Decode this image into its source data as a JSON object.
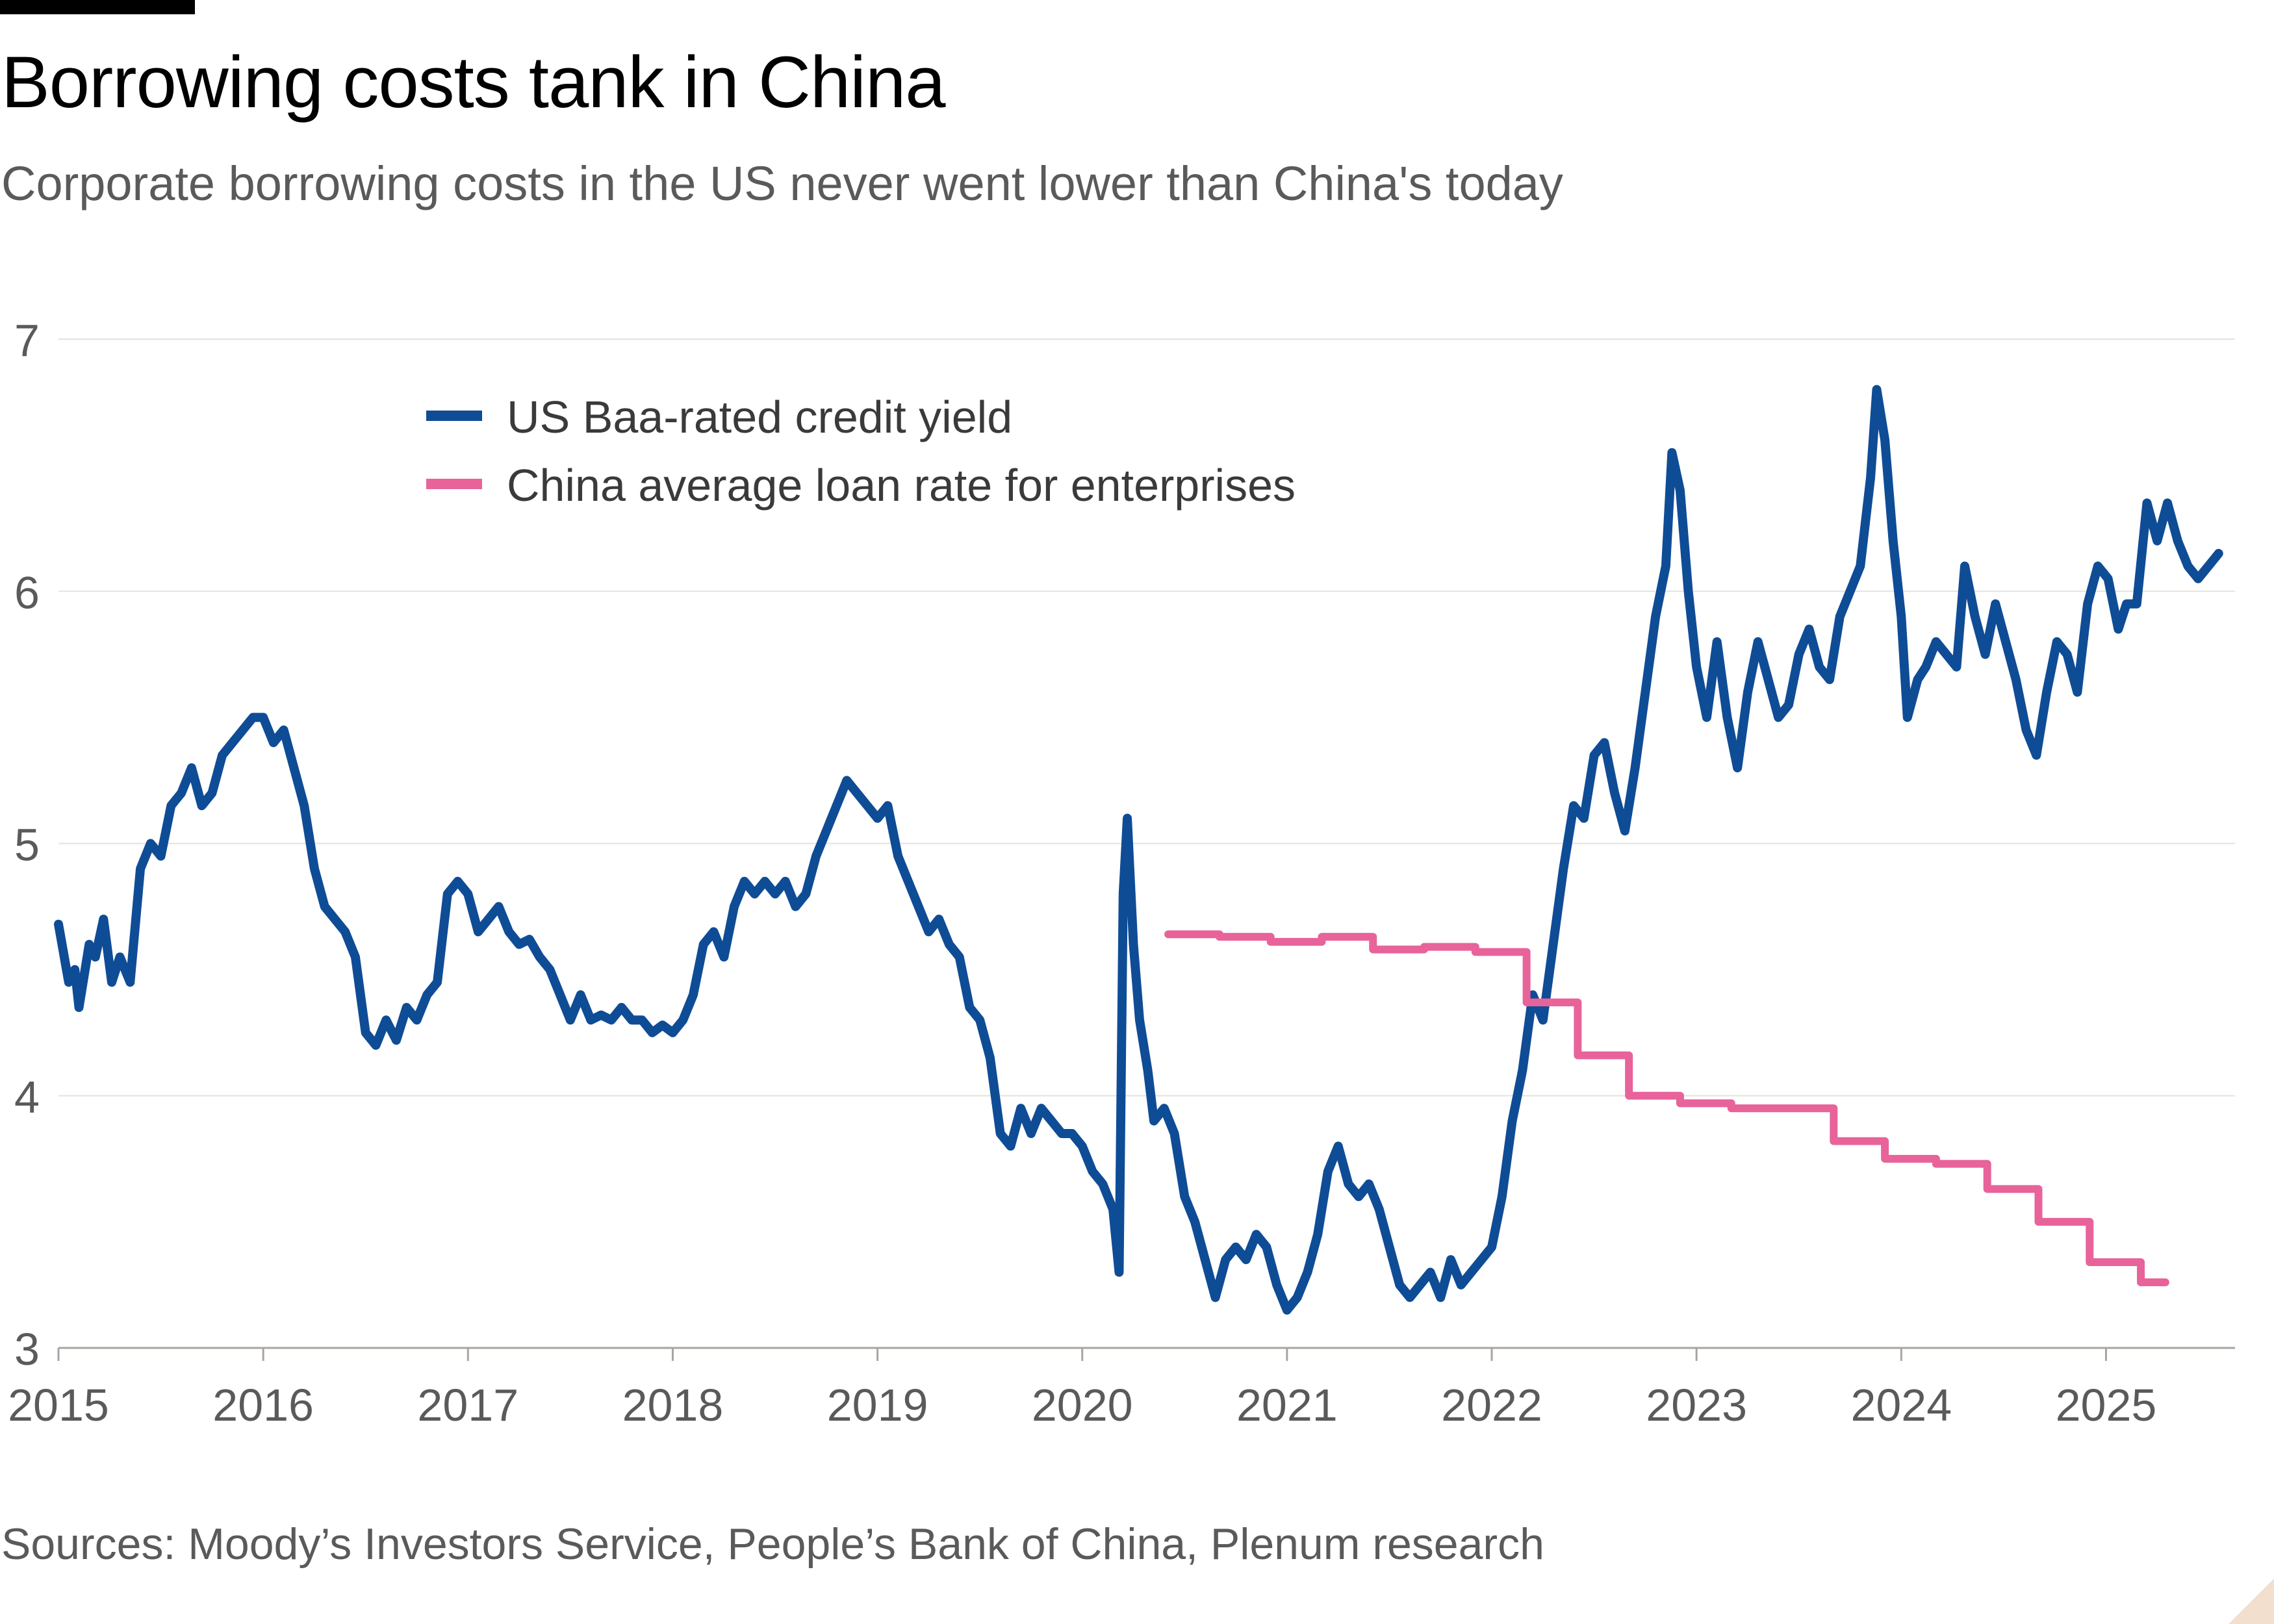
{
  "header": {
    "title": "Borrowing costs tank in China",
    "subtitle": "Corporate borrowing costs in the US never went lower than China's today"
  },
  "footer": {
    "source": "Sources: Moody’s Investors Service, People’s Bank of China, Plenum research"
  },
  "colors": {
    "us": "#0f4c96",
    "china": "#e8639a",
    "grid": "#e6e1dc",
    "axis_text": "#5a5a5a"
  },
  "chart_data": {
    "type": "line",
    "title": "Borrowing costs tank in China",
    "subtitle": "Corporate borrowing costs in the US never went lower than China's today",
    "xlabel": "",
    "ylabel": "",
    "xlim": [
      2015.0,
      2025.63
    ],
    "ylim": [
      3,
      7
    ],
    "yticks": [
      3,
      4,
      5,
      6,
      7
    ],
    "xticks": [
      2015,
      2016,
      2017,
      2018,
      2019,
      2020,
      2021,
      2022,
      2023,
      2024,
      2025
    ],
    "grid": true,
    "legend": "top-left",
    "series": [
      {
        "name": "US Baa-rated credit yield",
        "color": "#0f4c96",
        "step": false,
        "points": [
          [
            2015.0,
            4.68
          ],
          [
            2015.05,
            4.45
          ],
          [
            2015.08,
            4.5
          ],
          [
            2015.1,
            4.35
          ],
          [
            2015.15,
            4.6
          ],
          [
            2015.18,
            4.55
          ],
          [
            2015.22,
            4.7
          ],
          [
            2015.26,
            4.45
          ],
          [
            2015.3,
            4.55
          ],
          [
            2015.35,
            4.45
          ],
          [
            2015.4,
            4.9
          ],
          [
            2015.45,
            5.0
          ],
          [
            2015.5,
            4.95
          ],
          [
            2015.55,
            5.15
          ],
          [
            2015.6,
            5.2
          ],
          [
            2015.65,
            5.3
          ],
          [
            2015.7,
            5.15
          ],
          [
            2015.75,
            5.2
          ],
          [
            2015.8,
            5.35
          ],
          [
            2015.85,
            5.4
          ],
          [
            2015.9,
            5.45
          ],
          [
            2015.95,
            5.5
          ],
          [
            2016.0,
            5.5
          ],
          [
            2016.05,
            5.4
          ],
          [
            2016.1,
            5.45
          ],
          [
            2016.15,
            5.3
          ],
          [
            2016.2,
            5.15
          ],
          [
            2016.25,
            4.9
          ],
          [
            2016.3,
            4.75
          ],
          [
            2016.35,
            4.7
          ],
          [
            2016.4,
            4.65
          ],
          [
            2016.45,
            4.55
          ],
          [
            2016.5,
            4.25
          ],
          [
            2016.55,
            4.2
          ],
          [
            2016.6,
            4.3
          ],
          [
            2016.65,
            4.22
          ],
          [
            2016.7,
            4.35
          ],
          [
            2016.75,
            4.3
          ],
          [
            2016.8,
            4.4
          ],
          [
            2016.85,
            4.45
          ],
          [
            2016.9,
            4.8
          ],
          [
            2016.95,
            4.85
          ],
          [
            2017.0,
            4.8
          ],
          [
            2017.05,
            4.65
          ],
          [
            2017.1,
            4.7
          ],
          [
            2017.15,
            4.75
          ],
          [
            2017.2,
            4.65
          ],
          [
            2017.25,
            4.6
          ],
          [
            2017.3,
            4.62
          ],
          [
            2017.35,
            4.55
          ],
          [
            2017.4,
            4.5
          ],
          [
            2017.45,
            4.4
          ],
          [
            2017.5,
            4.3
          ],
          [
            2017.55,
            4.4
          ],
          [
            2017.6,
            4.3
          ],
          [
            2017.65,
            4.32
          ],
          [
            2017.7,
            4.3
          ],
          [
            2017.75,
            4.35
          ],
          [
            2017.8,
            4.3
          ],
          [
            2017.85,
            4.3
          ],
          [
            2017.9,
            4.25
          ],
          [
            2017.95,
            4.28
          ],
          [
            2018.0,
            4.25
          ],
          [
            2018.05,
            4.3
          ],
          [
            2018.1,
            4.4
          ],
          [
            2018.15,
            4.6
          ],
          [
            2018.2,
            4.65
          ],
          [
            2018.25,
            4.55
          ],
          [
            2018.3,
            4.75
          ],
          [
            2018.35,
            4.85
          ],
          [
            2018.4,
            4.8
          ],
          [
            2018.45,
            4.85
          ],
          [
            2018.5,
            4.8
          ],
          [
            2018.55,
            4.85
          ],
          [
            2018.6,
            4.75
          ],
          [
            2018.65,
            4.8
          ],
          [
            2018.7,
            4.95
          ],
          [
            2018.75,
            5.05
          ],
          [
            2018.8,
            5.15
          ],
          [
            2018.85,
            5.25
          ],
          [
            2018.9,
            5.2
          ],
          [
            2018.95,
            5.15
          ],
          [
            2019.0,
            5.1
          ],
          [
            2019.05,
            5.15
          ],
          [
            2019.1,
            4.95
          ],
          [
            2019.15,
            4.85
          ],
          [
            2019.2,
            4.75
          ],
          [
            2019.25,
            4.65
          ],
          [
            2019.3,
            4.7
          ],
          [
            2019.35,
            4.6
          ],
          [
            2019.4,
            4.55
          ],
          [
            2019.45,
            4.35
          ],
          [
            2019.5,
            4.3
          ],
          [
            2019.55,
            4.15
          ],
          [
            2019.6,
            3.85
          ],
          [
            2019.65,
            3.8
          ],
          [
            2019.7,
            3.95
          ],
          [
            2019.75,
            3.85
          ],
          [
            2019.8,
            3.95
          ],
          [
            2019.85,
            3.9
          ],
          [
            2019.9,
            3.85
          ],
          [
            2019.95,
            3.85
          ],
          [
            2020.0,
            3.8
          ],
          [
            2020.05,
            3.7
          ],
          [
            2020.1,
            3.65
          ],
          [
            2020.15,
            3.55
          ],
          [
            2020.18,
            3.3
          ],
          [
            2020.2,
            4.8
          ],
          [
            2020.22,
            5.1
          ],
          [
            2020.25,
            4.6
          ],
          [
            2020.28,
            4.3
          ],
          [
            2020.32,
            4.1
          ],
          [
            2020.35,
            3.9
          ],
          [
            2020.4,
            3.95
          ],
          [
            2020.45,
            3.85
          ],
          [
            2020.5,
            3.6
          ],
          [
            2020.55,
            3.5
          ],
          [
            2020.6,
            3.35
          ],
          [
            2020.65,
            3.2
          ],
          [
            2020.7,
            3.35
          ],
          [
            2020.75,
            3.4
          ],
          [
            2020.8,
            3.35
          ],
          [
            2020.85,
            3.45
          ],
          [
            2020.9,
            3.4
          ],
          [
            2020.95,
            3.25
          ],
          [
            2021.0,
            3.15
          ],
          [
            2021.05,
            3.2
          ],
          [
            2021.1,
            3.3
          ],
          [
            2021.15,
            3.45
          ],
          [
            2021.2,
            3.7
          ],
          [
            2021.25,
            3.8
          ],
          [
            2021.3,
            3.65
          ],
          [
            2021.35,
            3.6
          ],
          [
            2021.4,
            3.65
          ],
          [
            2021.45,
            3.55
          ],
          [
            2021.5,
            3.4
          ],
          [
            2021.55,
            3.25
          ],
          [
            2021.6,
            3.2
          ],
          [
            2021.65,
            3.25
          ],
          [
            2021.7,
            3.3
          ],
          [
            2021.75,
            3.2
          ],
          [
            2021.8,
            3.35
          ],
          [
            2021.85,
            3.25
          ],
          [
            2021.9,
            3.3
          ],
          [
            2021.95,
            3.35
          ],
          [
            2022.0,
            3.4
          ],
          [
            2022.05,
            3.6
          ],
          [
            2022.1,
            3.9
          ],
          [
            2022.15,
            4.1
          ],
          [
            2022.2,
            4.4
          ],
          [
            2022.25,
            4.3
          ],
          [
            2022.3,
            4.6
          ],
          [
            2022.35,
            4.9
          ],
          [
            2022.4,
            5.15
          ],
          [
            2022.45,
            5.1
          ],
          [
            2022.5,
            5.35
          ],
          [
            2022.55,
            5.4
          ],
          [
            2022.6,
            5.2
          ],
          [
            2022.65,
            5.05
          ],
          [
            2022.7,
            5.3
          ],
          [
            2022.75,
            5.6
          ],
          [
            2022.8,
            5.9
          ],
          [
            2022.85,
            6.1
          ],
          [
            2022.88,
            6.55
          ],
          [
            2022.92,
            6.4
          ],
          [
            2022.96,
            6.0
          ],
          [
            2023.0,
            5.7
          ],
          [
            2023.05,
            5.5
          ],
          [
            2023.1,
            5.8
          ],
          [
            2023.15,
            5.5
          ],
          [
            2023.2,
            5.3
          ],
          [
            2023.25,
            5.6
          ],
          [
            2023.3,
            5.8
          ],
          [
            2023.35,
            5.65
          ],
          [
            2023.4,
            5.5
          ],
          [
            2023.45,
            5.55
          ],
          [
            2023.5,
            5.75
          ],
          [
            2023.55,
            5.85
          ],
          [
            2023.6,
            5.7
          ],
          [
            2023.65,
            5.65
          ],
          [
            2023.7,
            5.9
          ],
          [
            2023.75,
            6.0
          ],
          [
            2023.8,
            6.1
          ],
          [
            2023.85,
            6.45
          ],
          [
            2023.88,
            6.8
          ],
          [
            2023.92,
            6.6
          ],
          [
            2023.96,
            6.2
          ],
          [
            2024.0,
            5.9
          ],
          [
            2024.03,
            5.5
          ],
          [
            2024.08,
            5.65
          ],
          [
            2024.12,
            5.7
          ],
          [
            2024.17,
            5.8
          ],
          [
            2024.22,
            5.75
          ],
          [
            2024.27,
            5.7
          ],
          [
            2024.31,
            6.1
          ],
          [
            2024.36,
            5.9
          ],
          [
            2024.41,
            5.75
          ],
          [
            2024.46,
            5.95
          ],
          [
            2024.51,
            5.8
          ],
          [
            2024.56,
            5.65
          ],
          [
            2024.61,
            5.45
          ],
          [
            2024.66,
            5.35
          ],
          [
            2024.71,
            5.6
          ],
          [
            2024.76,
            5.8
          ],
          [
            2024.81,
            5.75
          ],
          [
            2024.86,
            5.6
          ],
          [
            2024.91,
            5.95
          ],
          [
            2024.96,
            6.1
          ],
          [
            2025.01,
            6.05
          ],
          [
            2025.06,
            5.85
          ],
          [
            2025.1,
            5.95
          ],
          [
            2025.15,
            5.95
          ],
          [
            2025.2,
            6.35
          ],
          [
            2025.25,
            6.2
          ],
          [
            2025.3,
            6.35
          ],
          [
            2025.35,
            6.2
          ],
          [
            2025.4,
            6.1
          ],
          [
            2025.45,
            6.05
          ],
          [
            2025.5,
            6.1
          ],
          [
            2025.55,
            6.15
          ]
        ]
      },
      {
        "name": "China average loan rate for enterprises",
        "color": "#e8639a",
        "step": true,
        "points": [
          [
            2020.42,
            4.64
          ],
          [
            2020.67,
            4.63
          ],
          [
            2020.92,
            4.61
          ],
          [
            2021.17,
            4.63
          ],
          [
            2021.42,
            4.58
          ],
          [
            2021.67,
            4.59
          ],
          [
            2021.92,
            4.57
          ],
          [
            2022.17,
            4.37
          ],
          [
            2022.42,
            4.16
          ],
          [
            2022.67,
            4.0
          ],
          [
            2022.92,
            3.97
          ],
          [
            2023.17,
            3.95
          ],
          [
            2023.67,
            3.82
          ],
          [
            2023.92,
            3.75
          ],
          [
            2024.17,
            3.73
          ],
          [
            2024.42,
            3.63
          ],
          [
            2024.67,
            3.5
          ],
          [
            2024.92,
            3.34
          ],
          [
            2025.17,
            3.26
          ],
          [
            2025.29,
            3.26
          ]
        ]
      }
    ]
  }
}
